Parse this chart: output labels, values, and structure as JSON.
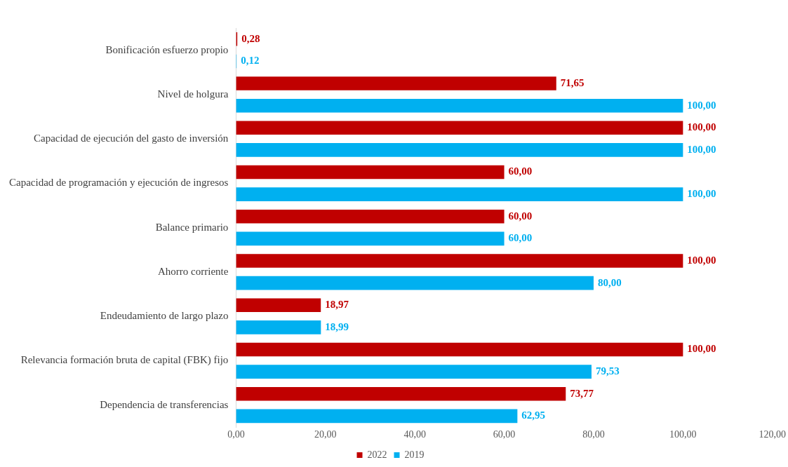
{
  "chart_data": {
    "type": "bar",
    "orientation": "horizontal",
    "categories": [
      "Bonificación esfuerzo propio",
      "Nivel de holgura",
      "Capacidad de ejecución del gasto de inversión",
      "Capacidad de programación y ejecución de ingresos",
      "Balance primario",
      "Ahorro corriente",
      "Endeudamiento de largo plazo",
      "Relevancia formación bruta de capital (FBK) fijo",
      "Dependencia de transferencias"
    ],
    "series": [
      {
        "name": "2022",
        "color": "#c00000",
        "values": [
          0.28,
          71.65,
          100,
          60,
          60,
          100,
          18.97,
          100,
          73.77
        ],
        "value_labels": [
          "0,28",
          "71,65",
          "100,00",
          "60,00",
          "60,00",
          "100,00",
          "18,97",
          "100,00",
          "73,77"
        ]
      },
      {
        "name": "2019",
        "color": "#00b0f0",
        "values": [
          0.12,
          100,
          100,
          100,
          60,
          80,
          18.99,
          79.53,
          62.95
        ],
        "value_labels": [
          "0,12",
          "100,00",
          "100,00",
          "100,00",
          "60,00",
          "80,00",
          "18,99",
          "79,53",
          "62,95"
        ]
      }
    ],
    "xlim": [
      0,
      120
    ],
    "xticks": [
      {
        "value": 0,
        "label": "0,00"
      },
      {
        "value": 20,
        "label": "20,00"
      },
      {
        "value": 40,
        "label": "40,00"
      },
      {
        "value": 60,
        "label": "60,00"
      },
      {
        "value": 80,
        "label": "80,00"
      },
      {
        "value": 100,
        "label": "100,00"
      },
      {
        "value": 120,
        "label": "120,00"
      }
    ],
    "grid": false,
    "legend": "bottom"
  }
}
